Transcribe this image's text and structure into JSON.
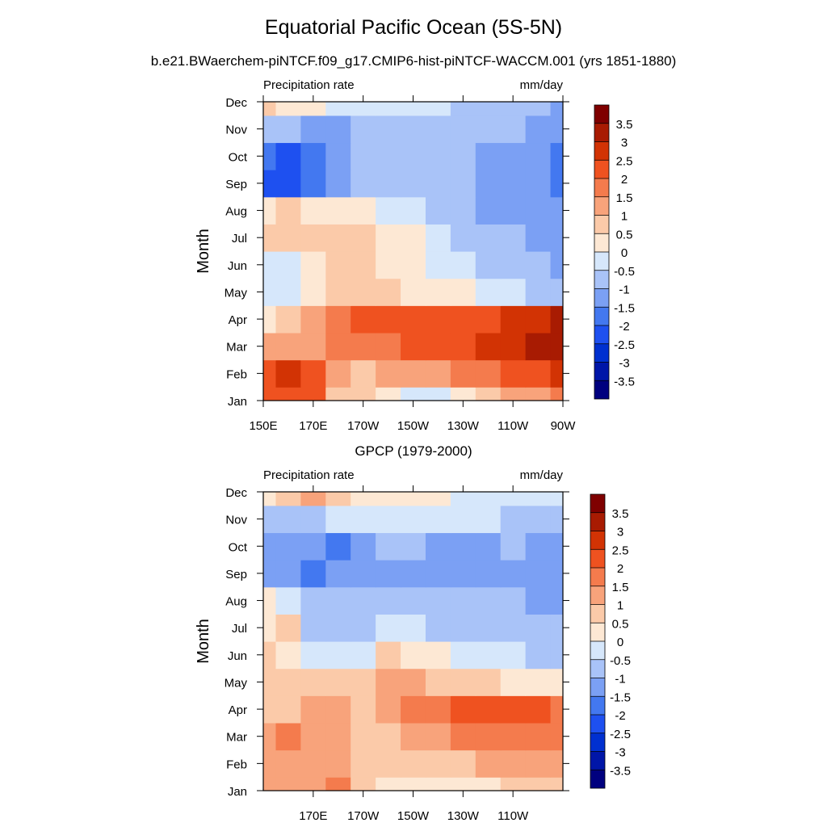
{
  "figure": {
    "title": "Equatorial Pacific Ocean (5S-5N)",
    "subtitle": "b.e21.BWaerchem-piNTCF.f09_g17.CMIP6-hist-piNTCF-WACCM.001 (yrs 1851-1880)"
  },
  "chart_data": [
    {
      "type": "heatmap",
      "panel": "model",
      "panel_title": "",
      "left_label": "Precipitation rate",
      "right_label": "mm/day",
      "ylabel": "Month",
      "xlabel": "",
      "x_ticks": [
        "150E",
        "170E",
        "170W",
        "150W",
        "130W",
        "110W",
        "90W"
      ],
      "y_ticks": [
        "Jan",
        "Feb",
        "Mar",
        "Apr",
        "May",
        "Jun",
        "Jul",
        "Aug",
        "Sep",
        "Oct",
        "Nov",
        "Dec"
      ],
      "x_range": [
        "150E",
        "90W"
      ],
      "y_range": [
        "Jan",
        "Dec"
      ],
      "lon": [
        "150E",
        "160E",
        "170E",
        "180",
        "170W",
        "160W",
        "150W",
        "140W",
        "130W",
        "120W",
        "110W",
        "100W",
        "90W"
      ],
      "months": [
        "Jan",
        "Feb",
        "Mar",
        "Apr",
        "May",
        "Jun",
        "Jul",
        "Aug",
        "Sep",
        "Oct",
        "Nov",
        "Dec"
      ],
      "values": [
        [
          2.2,
          2.4,
          2.0,
          0.9,
          0.6,
          0.3,
          -0.2,
          -0.2,
          0.3,
          0.9,
          1.1,
          1.3,
          1.5
        ],
        [
          2.3,
          2.7,
          2.1,
          1.2,
          0.9,
          1.0,
          1.2,
          1.3,
          1.6,
          1.8,
          2.0,
          2.3,
          2.6
        ],
        [
          1.0,
          1.1,
          1.4,
          1.6,
          1.7,
          1.9,
          2.0,
          2.0,
          2.2,
          2.5,
          2.8,
          3.1,
          3.2
        ],
        [
          0.4,
          0.7,
          1.2,
          1.7,
          2.1,
          2.3,
          2.4,
          2.3,
          2.2,
          2.3,
          2.5,
          2.8,
          3.0
        ],
        [
          -0.2,
          -0.4,
          0.4,
          0.8,
          0.9,
          0.6,
          0.2,
          0.1,
          0.0,
          -0.2,
          -0.4,
          -0.6,
          -0.8
        ],
        [
          -0.1,
          -0.5,
          0.3,
          0.8,
          0.7,
          0.3,
          0.1,
          -0.1,
          -0.4,
          -0.6,
          -0.8,
          -1.0,
          -1.2
        ],
        [
          0.7,
          0.5,
          0.6,
          0.6,
          0.5,
          0.3,
          0.1,
          -0.3,
          -0.6,
          -0.8,
          -1.0,
          -1.2,
          -1.3
        ],
        [
          0.4,
          0.5,
          0.4,
          0.3,
          0.1,
          -0.2,
          -0.4,
          -0.6,
          -0.9,
          -1.1,
          -1.2,
          -1.3,
          -1.4
        ],
        [
          -2.2,
          -2.4,
          -1.6,
          -1.2,
          -0.9,
          -0.8,
          -0.8,
          -0.9,
          -0.9,
          -1.1,
          -1.2,
          -1.3,
          -1.6
        ],
        [
          -2.0,
          -2.1,
          -2.0,
          -1.3,
          -1.0,
          -1.0,
          -0.8,
          -0.8,
          -0.9,
          -1.1,
          -1.3,
          -1.4,
          -1.6
        ],
        [
          -0.6,
          -1.0,
          -1.1,
          -1.1,
          -0.8,
          -0.6,
          -0.6,
          -0.6,
          -0.6,
          -0.7,
          -1.0,
          -1.2,
          -1.3
        ],
        [
          0.6,
          0.3,
          0.0,
          -0.3,
          -0.3,
          -0.4,
          -0.4,
          -0.5,
          -0.6,
          -0.7,
          -0.9,
          -1.0,
          -1.1
        ]
      ]
    },
    {
      "type": "heatmap",
      "panel": "obs",
      "panel_title": "GPCP (1979-2000)",
      "left_label": "Precipitation rate",
      "right_label": "mm/day",
      "ylabel": "Month",
      "xlabel": "",
      "x_ticks": [
        "170E",
        "170W",
        "150W",
        "130W",
        "110W"
      ],
      "y_ticks": [
        "Jan",
        "Feb",
        "Mar",
        "Apr",
        "May",
        "Jun",
        "Jul",
        "Aug",
        "Sep",
        "Oct",
        "Nov",
        "Dec"
      ],
      "x_range": [
        "150E",
        "90W"
      ],
      "y_range": [
        "Jan",
        "Dec"
      ],
      "lon": [
        "150E",
        "160E",
        "170E",
        "180",
        "170W",
        "160W",
        "150W",
        "140W",
        "130W",
        "120W",
        "110W",
        "100W",
        "90W"
      ],
      "months": [
        "Jan",
        "Feb",
        "Mar",
        "Apr",
        "May",
        "Jun",
        "Jul",
        "Aug",
        "Sep",
        "Oct",
        "Nov",
        "Dec"
      ],
      "values": [
        [
          1.1,
          1.1,
          1.3,
          1.6,
          0.7,
          0.4,
          0.3,
          0.3,
          0.2,
          0.4,
          0.5,
          0.6,
          0.7
        ],
        [
          1.1,
          1.1,
          1.3,
          1.2,
          0.9,
          0.7,
          0.6,
          0.7,
          0.9,
          1.1,
          1.3,
          1.4,
          1.3
        ],
        [
          1.2,
          1.5,
          1.2,
          1.3,
          0.9,
          0.9,
          1.2,
          1.4,
          1.9,
          1.8,
          1.9,
          1.7,
          1.6
        ],
        [
          0.9,
          0.9,
          1.0,
          1.0,
          0.9,
          1.3,
          1.6,
          1.9,
          2.1,
          2.2,
          2.0,
          2.1,
          1.9
        ],
        [
          0.5,
          0.5,
          0.6,
          0.9,
          0.9,
          1.0,
          1.0,
          0.9,
          0.8,
          0.6,
          0.4,
          0.3,
          0.2
        ],
        [
          0.6,
          0.3,
          -0.4,
          -0.3,
          -0.2,
          0.5,
          0.3,
          0.0,
          -0.2,
          -0.3,
          -0.5,
          -0.6,
          -0.7
        ],
        [
          0.4,
          0.5,
          -0.6,
          -0.8,
          -0.6,
          -0.5,
          -0.5,
          -0.6,
          -0.7,
          -0.7,
          -0.8,
          -0.9,
          -1.0
        ],
        [
          0.4,
          -0.5,
          -0.8,
          -0.8,
          -0.8,
          -0.8,
          -0.8,
          -0.8,
          -0.9,
          -0.9,
          -1.0,
          -1.1,
          -1.1
        ],
        [
          -1.3,
          -1.3,
          -1.7,
          -1.3,
          -1.2,
          -1.1,
          -1.1,
          -1.2,
          -1.3,
          -1.3,
          -1.2,
          -1.2,
          -1.3
        ],
        [
          -1.1,
          -1.3,
          -1.5,
          -2.0,
          -1.2,
          -0.9,
          -0.8,
          -1.1,
          -1.3,
          -1.1,
          -0.9,
          -1.1,
          -1.2
        ],
        [
          -0.9,
          -0.8,
          -0.6,
          -0.5,
          -0.4,
          -0.3,
          -0.3,
          -0.3,
          -0.3,
          -0.5,
          -0.7,
          -0.8,
          -0.8
        ],
        [
          0.4,
          0.8,
          1.0,
          0.7,
          0.4,
          0.2,
          0.1,
          0.0,
          -0.1,
          -0.2,
          -0.3,
          -0.3,
          -0.4
        ]
      ]
    }
  ],
  "colorbar": {
    "labels": [
      "3.5",
      "3",
      "2.5",
      "2",
      "1.5",
      "1",
      "0.5",
      "0",
      "-0.5",
      "-1",
      "-1.5",
      "-2",
      "-2.5",
      "-3",
      "-3.5"
    ],
    "levels": [
      -3.5,
      -3,
      -2.5,
      -2,
      -1.5,
      -1,
      -0.5,
      0,
      0.5,
      1,
      1.5,
      2,
      2.5,
      3,
      3.5
    ],
    "colors": [
      "#00007f",
      "#0016a8",
      "#0030d0",
      "#1e50f0",
      "#4378f0",
      "#7ba0f4",
      "#a9c3f8",
      "#d6e7fb",
      "#fde8d4",
      "#fbcaa9",
      "#f8a37b",
      "#f47b4d",
      "#ef5220",
      "#d23304",
      "#a81b02",
      "#7f0000"
    ]
  }
}
